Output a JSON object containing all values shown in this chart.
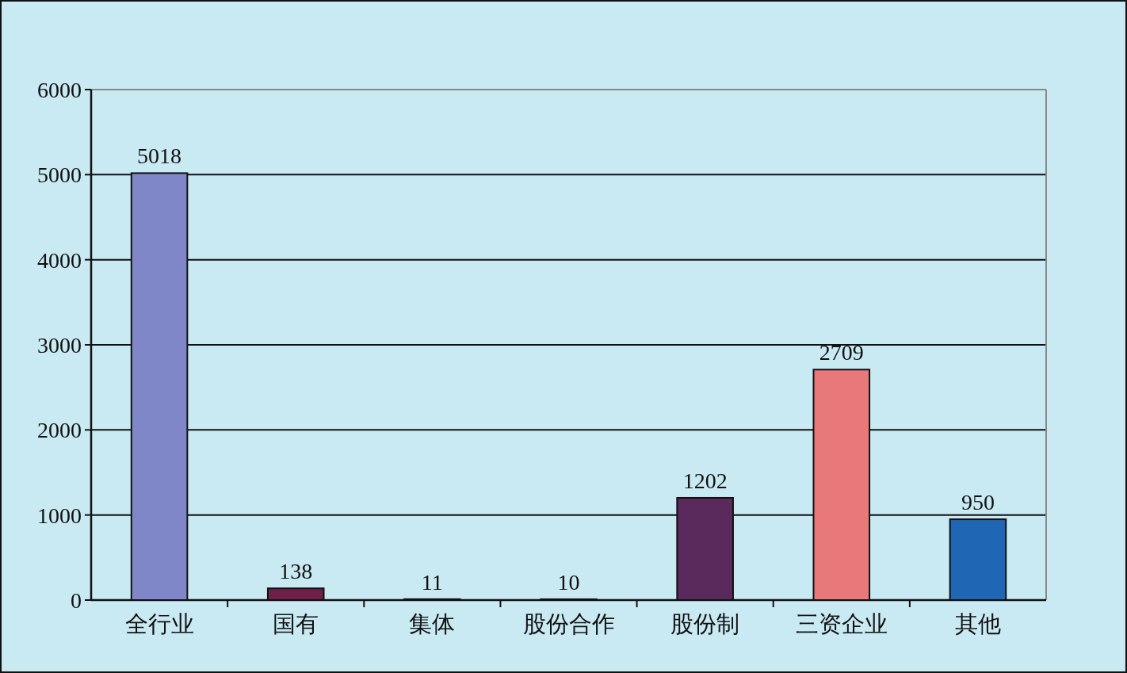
{
  "chart_data": {
    "type": "bar",
    "categories": [
      "全行业",
      "国有",
      "集体",
      "股份合作",
      "股份制",
      "三资企业",
      "其他"
    ],
    "values": [
      5018,
      138,
      11,
      10,
      1202,
      2709,
      950
    ],
    "colors": [
      "#7f87c8",
      "#6e1f4a",
      "#e0dcaa",
      "#a8d4d6",
      "#5a2a5c",
      "#e8787a",
      "#1f66b4"
    ],
    "ylim": [
      0,
      6000
    ],
    "yticks": [
      0,
      1000,
      2000,
      3000,
      4000,
      5000,
      6000
    ],
    "grid": "y",
    "data_labels": true
  }
}
